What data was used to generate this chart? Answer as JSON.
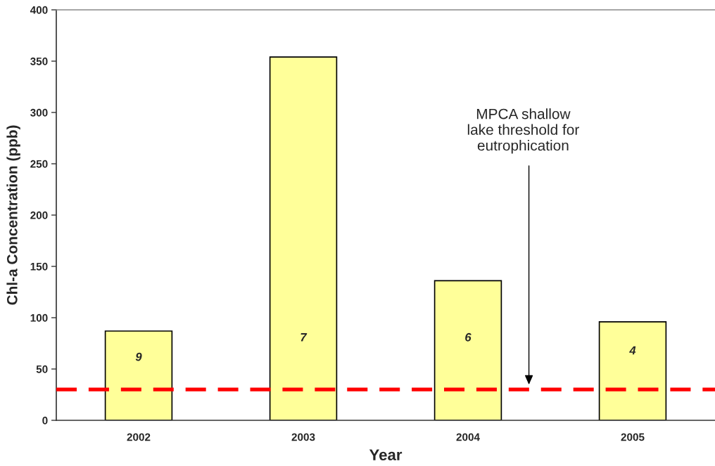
{
  "chart_data": {
    "type": "bar",
    "categories": [
      "2002",
      "2003",
      "2004",
      "2005"
    ],
    "values": [
      87,
      354,
      136,
      96
    ],
    "color": "#ffff99",
    "xlabel": "Year",
    "ylabel": "Chl-a Concentration (ppb)",
    "ylim": [
      0,
      400
    ],
    "yticks": [
      0,
      50,
      100,
      150,
      200,
      250,
      300,
      350,
      400
    ],
    "annotations": [
      "9",
      "7",
      "6",
      "4"
    ],
    "ref_lines": [
      {
        "axis": "y",
        "value": 30,
        "label": "MPCA shallow\nlake threshold for\neutrophication",
        "color": "#ff0000",
        "line_style": "dashed"
      }
    ]
  }
}
